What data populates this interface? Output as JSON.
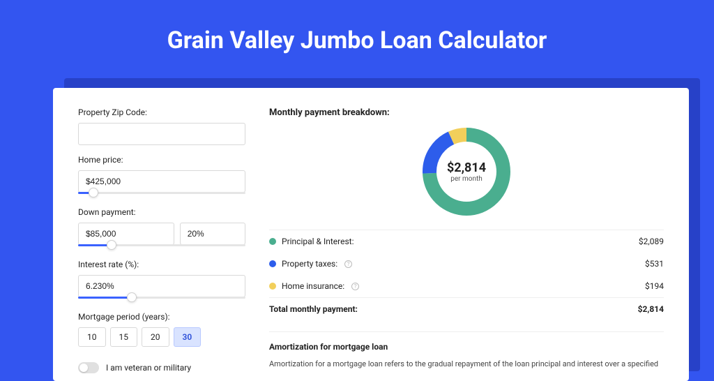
{
  "page": {
    "title": "Grain Valley Jumbo Loan Calculator",
    "background_color": "#3355f0",
    "shadow_color": "#2741c8",
    "card_background": "#ffffff"
  },
  "form": {
    "zip": {
      "label": "Property Zip Code:",
      "value": ""
    },
    "home_price": {
      "label": "Home price:",
      "value": "$425,000",
      "slider_pct": 9
    },
    "down_payment": {
      "label": "Down payment:",
      "amount": "$85,000",
      "percent": "20%",
      "slider_pct": 20
    },
    "interest_rate": {
      "label": "Interest rate (%):",
      "value": "6.230%",
      "slider_pct": 32
    },
    "mortgage_period": {
      "label": "Mortgage period (years):",
      "options": [
        "10",
        "15",
        "20",
        "30"
      ],
      "selected_index": 3
    },
    "veteran": {
      "label": "I am veteran or military",
      "on": false
    }
  },
  "breakdown": {
    "title": "Monthly payment breakdown:",
    "donut": {
      "amount": "$2,814",
      "sub": "per month",
      "size": 126,
      "stroke": 20,
      "slices": [
        {
          "name": "principal_interest",
          "value": 2089,
          "color": "#4aae8f"
        },
        {
          "name": "property_taxes",
          "value": 531,
          "color": "#2d5deb"
        },
        {
          "name": "home_insurance",
          "value": 194,
          "color": "#f2cf5b"
        }
      ]
    },
    "rows": [
      {
        "label": "Principal & Interest:",
        "value": "$2,089",
        "color": "#4aae8f",
        "info": false
      },
      {
        "label": "Property taxes:",
        "value": "$531",
        "color": "#2d5deb",
        "info": true
      },
      {
        "label": "Home insurance:",
        "value": "$194",
        "color": "#f2cf5b",
        "info": true
      }
    ],
    "total": {
      "label": "Total monthly payment:",
      "value": "$2,814"
    }
  },
  "amortization": {
    "title": "Amortization for mortgage loan",
    "text": "Amortization for a mortgage loan refers to the gradual repayment of the loan principal and interest over a specified"
  }
}
